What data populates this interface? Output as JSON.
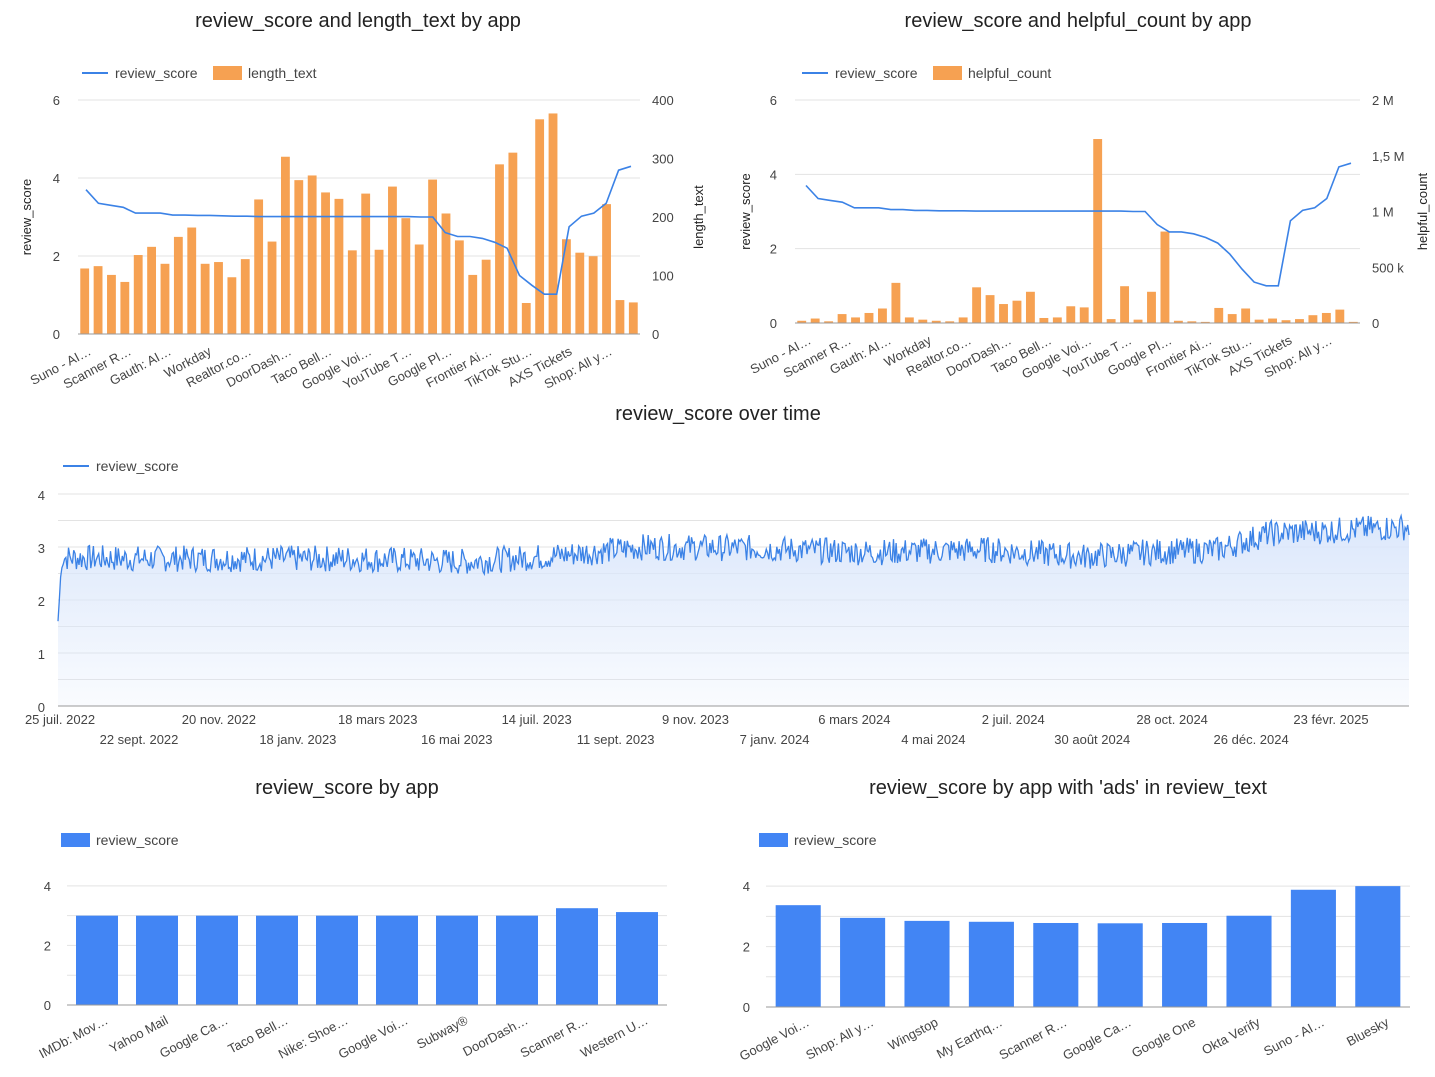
{
  "colors": {
    "line": "#3b82e6",
    "bar_orange": "#f6a152",
    "bar_blue": "#4285f4",
    "area_fill": "#dbe7fb"
  },
  "chart_data": [
    {
      "type": "bar",
      "combo": "bar+line",
      "title": "review_score and length_text by app",
      "legend": "top-left",
      "ylabel": "review_score",
      "ylabel_right": "length_text",
      "ylim": [
        0,
        6
      ],
      "ylim_right": [
        0,
        400
      ],
      "yticks": [
        "0",
        "2",
        "4",
        "6"
      ],
      "yticks_right": [
        "0",
        "100",
        "200",
        "300",
        "400"
      ],
      "category_labels": [
        "Suno - AI…",
        "Scanner R…",
        "Gauth: AI…",
        "Workday",
        "Realtor.co…",
        "DoorDash…",
        "Taco Bell…",
        "Google Voi…",
        "YouTube T…",
        "Google Pl…",
        "Frontier Ai…",
        "TikTok Stu…",
        "AXS Tickets",
        "Shop: All y…"
      ],
      "series": [
        {
          "name": "review_score",
          "kind": "line",
          "axis": "left",
          "values": [
            3.7,
            3.35,
            3.3,
            3.25,
            3.1,
            3.1,
            3.1,
            3.05,
            3.05,
            3.04,
            3.04,
            3.03,
            3.02,
            3.02,
            3.01,
            3.01,
            3.01,
            3.01,
            3.01,
            3.01,
            3.01,
            3.01,
            3.01,
            3.01,
            3.01,
            3.01,
            3.01,
            3.0,
            3.0,
            2.6,
            2.5,
            2.5,
            2.45,
            2.35,
            2.2,
            1.5,
            1.25,
            1.02,
            1.02,
            2.75,
            3.02,
            3.1,
            3.35,
            4.2,
            4.3
          ]
        },
        {
          "name": "length_text",
          "kind": "bar",
          "axis": "right",
          "values": [
            112,
            116,
            101,
            89,
            135,
            149,
            120,
            166,
            182,
            120,
            123,
            97,
            128,
            230,
            158,
            303,
            263,
            271,
            242,
            231,
            143,
            240,
            144,
            252,
            198,
            153,
            264,
            206,
            160,
            101,
            127,
            290,
            310,
            53,
            367,
            377,
            162,
            139,
            133,
            222,
            58,
            54
          ]
        }
      ]
    },
    {
      "type": "bar",
      "combo": "bar+line",
      "title": "review_score and helpful_count by app",
      "legend": "top-left",
      "ylabel": "review_score",
      "ylabel_right": "helpful_count",
      "ylim": [
        0,
        6
      ],
      "ylim_right": [
        0,
        2000000
      ],
      "yticks": [
        "0",
        "2",
        "4",
        "6"
      ],
      "yticks_right": [
        "0",
        "500 k",
        "1 M",
        "1,5 M",
        "2 M"
      ],
      "category_labels": [
        "Suno - AI…",
        "Scanner R…",
        "Gauth: AI…",
        "Workday",
        "Realtor.co…",
        "DoorDash…",
        "Taco Bell…",
        "Google Voi…",
        "YouTube T…",
        "Google Pl…",
        "Frontier Ai…",
        "TikTok Stu…",
        "AXS Tickets",
        "Shop: All y…"
      ],
      "series": [
        {
          "name": "review_score",
          "kind": "line",
          "axis": "left",
          "values": [
            3.7,
            3.35,
            3.3,
            3.25,
            3.1,
            3.1,
            3.1,
            3.05,
            3.05,
            3.03,
            3.03,
            3.02,
            3.02,
            3.02,
            3.01,
            3.01,
            3.01,
            3.01,
            3.01,
            3.01,
            3.01,
            3.01,
            3.01,
            3.01,
            3.01,
            3.01,
            3.01,
            3.0,
            3.0,
            2.65,
            2.45,
            2.45,
            2.4,
            2.3,
            2.15,
            1.85,
            1.45,
            1.1,
            1.0,
            1.0,
            2.75,
            3.03,
            3.1,
            3.35,
            4.2,
            4.3
          ]
        },
        {
          "name": "helpful_count",
          "kind": "bar",
          "axis": "right",
          "values": [
            20000,
            40000,
            15000,
            80000,
            50000,
            90000,
            130000,
            360000,
            50000,
            30000,
            20000,
            15000,
            50000,
            320000,
            250000,
            170000,
            200000,
            280000,
            45000,
            50000,
            150000,
            140000,
            1650000,
            35000,
            330000,
            30000,
            280000,
            820000,
            20000,
            15000,
            10000,
            135000,
            80000,
            130000,
            30000,
            40000,
            25000,
            35000,
            70000,
            90000,
            120000,
            10000
          ]
        }
      ]
    },
    {
      "type": "area",
      "title": "review_score over time",
      "legend": "top-left",
      "series_name": "review_score",
      "ylim": [
        0,
        4
      ],
      "yticks": [
        "0",
        "1",
        "2",
        "3",
        "4"
      ],
      "x_range": [
        "2022-07-25",
        "2025-05-20"
      ],
      "xtick_labels_row1": [
        "25 juil. 2022",
        "20 nov. 2022",
        "18 mars 2023",
        "14 juil. 2023",
        "9 nov. 2023",
        "6 mars 2024",
        "2 juil. 2024",
        "28 oct. 2024",
        "23 févr. 2025"
      ],
      "xtick_labels_row2": [
        "22 sept. 2022",
        "18 janv. 2023",
        "16 mai 2023",
        "11 sept. 2023",
        "7 janv. 2024",
        "4 mai 2024",
        "30 août 2024",
        "26 déc. 2024"
      ],
      "trend": [
        {
          "x": "2022-07-25",
          "y": 1.6
        },
        {
          "x": "2022-07-28",
          "y": 2.8
        },
        {
          "x": "2022-09-15",
          "y": 2.78
        },
        {
          "x": "2022-12-01",
          "y": 2.78
        },
        {
          "x": "2023-03-01",
          "y": 2.78
        },
        {
          "x": "2023-06-01",
          "y": 2.72
        },
        {
          "x": "2023-08-01",
          "y": 2.82
        },
        {
          "x": "2023-10-15",
          "y": 3.0
        },
        {
          "x": "2024-01-01",
          "y": 2.98
        },
        {
          "x": "2024-04-01",
          "y": 2.9
        },
        {
          "x": "2024-07-01",
          "y": 2.95
        },
        {
          "x": "2024-09-15",
          "y": 2.82
        },
        {
          "x": "2024-11-01",
          "y": 2.9
        },
        {
          "x": "2024-12-26",
          "y": 2.95
        },
        {
          "x": "2025-02-01",
          "y": 3.25
        },
        {
          "x": "2025-05-20",
          "y": 3.38
        }
      ]
    },
    {
      "type": "bar",
      "title": "review_score by app",
      "legend": "top-left",
      "series_name": "review_score",
      "ylim": [
        0,
        4.6
      ],
      "yticks": [
        "0",
        "2",
        "4"
      ],
      "categories": [
        "IMDb: Mov…",
        "Yahoo Mail",
        "Google Ca…",
        "Taco Bell…",
        "Nike: Shoe…",
        "Google Voi…",
        "Subway®",
        "DoorDash…",
        "Scanner R…",
        "Western U…"
      ],
      "values": [
        3.0,
        3.0,
        3.0,
        3.0,
        3.0,
        3.0,
        3.0,
        3.0,
        3.25,
        3.12
      ]
    },
    {
      "type": "bar",
      "title": "review_score by app with 'ads' in review_text",
      "legend": "top-left",
      "series_name": "review_score",
      "ylim": [
        0,
        4.6
      ],
      "yticks": [
        "0",
        "2",
        "4"
      ],
      "categories": [
        "Google Voi…",
        "Shop: All y…",
        "Wingstop",
        "My Earthq…",
        "Scanner R…",
        "Google Ca…",
        "Google One",
        "Okta Verify",
        "Suno - AI…",
        "Bluesky"
      ],
      "values": [
        3.37,
        2.95,
        2.85,
        2.82,
        2.78,
        2.77,
        2.78,
        3.02,
        3.88,
        4.0
      ]
    }
  ]
}
